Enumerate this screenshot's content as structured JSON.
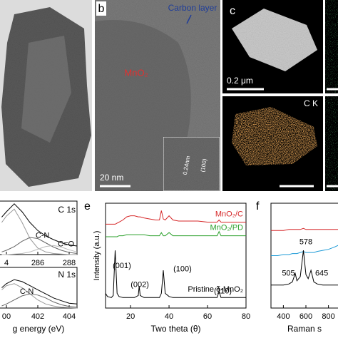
{
  "images": {
    "b": {
      "label": "b",
      "carbon": "Carbon layer",
      "core": "MnO₂",
      "spacing": "0.24nm",
      "plane": "(100)",
      "scale": "20 nm"
    },
    "c": {
      "label": "c",
      "scale": "0.2 μm",
      "element": "C K"
    }
  },
  "chart_data": [
    {
      "type": "line",
      "title": "C 1s",
      "x": [
        283.7,
        284,
        284.5,
        285,
        285.5,
        286,
        286.5,
        287,
        287.5,
        288,
        288.5
      ],
      "series": [
        {
          "color": "#000000",
          "values": [
            70,
            80,
            95,
            80,
            60,
            45,
            35,
            28,
            22,
            18,
            16
          ]
        },
        {
          "color": "#999999",
          "values": [
            60,
            72,
            85,
            60,
            30,
            12,
            5,
            2,
            1,
            0,
            0
          ]
        },
        {
          "color": "#666666",
          "values": [
            5,
            8,
            15,
            25,
            32,
            30,
            22,
            14,
            8,
            4,
            2
          ]
        },
        {
          "color": "#bbbbbb",
          "values": [
            0,
            0,
            1,
            2,
            5,
            10,
            15,
            17,
            14,
            9,
            5
          ]
        }
      ],
      "xlim": [
        283.5,
        288.5
      ],
      "xticks": [
        {
          "value": 284,
          "label": "4"
        },
        286,
        288
      ],
      "ylim": [
        0,
        100
      ],
      "annotations": [
        {
          "text": "C-N",
          "x": 286.3,
          "y": 35
        },
        {
          "text": "C=O",
          "x": 287.8,
          "y": 19
        }
      ]
    },
    {
      "type": "line",
      "title": "N 1s",
      "xlabel": "g energy (eV)",
      "x": [
        399.7,
        400,
        400.5,
        401,
        401.5,
        402,
        402.5,
        403,
        403.5,
        404,
        404.5
      ],
      "series": [
        {
          "color": "#000000",
          "values": [
            50,
            60,
            70,
            65,
            55,
            45,
            35,
            25,
            18,
            12,
            10
          ]
        },
        {
          "color": "#999999",
          "values": [
            45,
            55,
            60,
            50,
            35,
            20,
            10,
            5,
            2,
            1,
            0
          ]
        },
        {
          "color": "#666666",
          "values": [
            5,
            10,
            20,
            30,
            35,
            32,
            25,
            15,
            8,
            4,
            2
          ]
        }
      ],
      "xlim": [
        399.5,
        404.5
      ],
      "xticks": [
        {
          "value": 400,
          "label": "00"
        },
        402,
        404
      ],
      "ylim": [
        0,
        100
      ],
      "annotations": [
        {
          "text": "C-N",
          "x": 401.3,
          "y": 40
        }
      ]
    },
    {
      "type": "line",
      "label": "e",
      "xlabel": "Two theta (θ)",
      "ylabel": "Intensity (a.u.)",
      "x": [
        7,
        8,
        10,
        11,
        12,
        13,
        14,
        16,
        18,
        20,
        22,
        24,
        24.5,
        25,
        27,
        30,
        33,
        35,
        36,
        37,
        38,
        40,
        42,
        45,
        50,
        55,
        60,
        65,
        66,
        67,
        70,
        75,
        80
      ],
      "series": [
        {
          "name": "MnO₂/C",
          "color": "#d62728",
          "values": [
            80,
            80,
            80,
            80,
            80,
            81,
            82,
            84,
            87,
            88,
            88,
            87,
            87,
            87,
            86,
            85,
            84,
            84,
            93,
            85,
            84,
            88,
            84,
            83,
            83,
            83,
            82,
            82,
            84,
            82,
            82,
            82,
            82
          ]
        },
        {
          "name": "MnO₂/PD",
          "color": "#2ca02c",
          "values": [
            68,
            68,
            68,
            68,
            68,
            68,
            69,
            69,
            70,
            70,
            70,
            70,
            70,
            70,
            70,
            69,
            69,
            69,
            72,
            69,
            69,
            72,
            69,
            69,
            69,
            69,
            69,
            69,
            73,
            69,
            69,
            69,
            69
          ]
        },
        {
          "name": "Pristine δ-MnO₂",
          "color": "#000000",
          "values": [
            14,
            11,
            10,
            12,
            55,
            14,
            11,
            10,
            10,
            10,
            10,
            12,
            21,
            12,
            10,
            10,
            10,
            10,
            14,
            36,
            14,
            11,
            10,
            10,
            10,
            10,
            10,
            10,
            16,
            10,
            10,
            10,
            10
          ]
        }
      ],
      "xlim": [
        7,
        80
      ],
      "xticks": [
        20,
        40,
        60,
        80
      ],
      "ylim": [
        0,
        100
      ],
      "annotations": [
        {
          "text": "(001)",
          "x": 15.5,
          "y": 40
        },
        {
          "text": "(002)",
          "x": 24.8,
          "y": 22
        },
        {
          "text": "(100)",
          "x": 47,
          "y": 37
        },
        {
          "text": "(110)",
          "x": 68,
          "y": 16
        }
      ]
    },
    {
      "type": "line",
      "label": "f",
      "xlabel": "Raman s",
      "x": [
        290,
        350,
        400,
        450,
        480,
        505,
        520,
        550,
        578,
        600,
        620,
        645,
        670,
        700,
        750,
        800,
        850,
        890
      ],
      "series": [
        {
          "color": "#d62728",
          "values": [
            74,
            74,
            74,
            75,
            75,
            75,
            75,
            75,
            76,
            75,
            75,
            75,
            75,
            75,
            75,
            75,
            75,
            75
          ]
        },
        {
          "color": "#1f9bd7",
          "values": [
            50,
            50,
            51,
            51,
            52,
            52,
            52,
            53,
            54,
            53,
            53,
            53,
            53,
            54,
            55,
            56,
            58,
            60
          ]
        },
        {
          "color": "#000000",
          "values": [
            22,
            22,
            22,
            23,
            25,
            33,
            26,
            30,
            55,
            32,
            28,
            36,
            25,
            23,
            22,
            22,
            22,
            22
          ]
        }
      ],
      "xlim": [
        290,
        910
      ],
      "xticks": [
        400,
        600,
        800
      ],
      "ylim": [
        0,
        100
      ],
      "annotations": [
        {
          "text": "505",
          "x": 445,
          "y": 33
        },
        {
          "text": "578",
          "x": 600,
          "y": 63
        },
        {
          "text": "645",
          "x": 740,
          "y": 33
        }
      ]
    }
  ]
}
